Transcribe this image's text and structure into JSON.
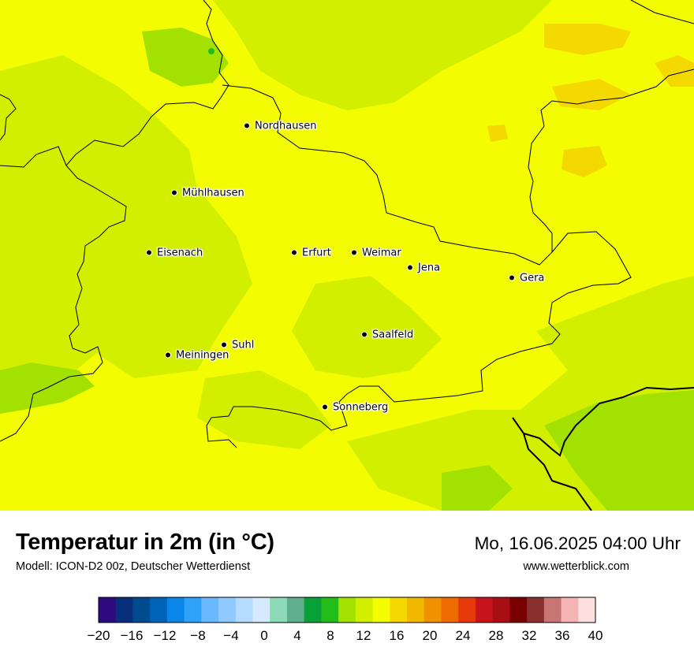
{
  "map": {
    "title": "Temperatur in 2m (in °C)",
    "subtitle": "Modell: ICON-D2 00z, Deutscher Wetterdienst",
    "datetime": "Mo, 16.06.2025 04:00 Uhr",
    "website": "www.wetterblick.com",
    "cities": [
      {
        "name": "Nordhausen"
      },
      {
        "name": "Mühlhausen"
      },
      {
        "name": "Eisenach"
      },
      {
        "name": "Erfurt"
      },
      {
        "name": "Weimar"
      },
      {
        "name": "Jena"
      },
      {
        "name": "Gera"
      },
      {
        "name": "Saalfeld"
      },
      {
        "name": "Suhl"
      },
      {
        "name": "Meiningen"
      },
      {
        "name": "Sonneberg"
      }
    ]
  },
  "legend": {
    "unit": "°C",
    "min": -20,
    "max": 40,
    "step": 2,
    "tick_labels": [
      "−20",
      "−16",
      "−12",
      "−8",
      "−4",
      "0",
      "4",
      "8",
      "12",
      "16",
      "20",
      "24",
      "28",
      "32",
      "36",
      "40"
    ],
    "colors": [
      "#2e0a7e",
      "#0a2f7a",
      "#004b8e",
      "#0064b8",
      "#0a86e8",
      "#2ea1f8",
      "#6ab9ff",
      "#90c9ff",
      "#b5dcff",
      "#d5e9ff",
      "#8ed9b6",
      "#5fae8c",
      "#0aa038",
      "#22bd18",
      "#a2e100",
      "#d2ef00",
      "#f3fc00",
      "#f3d900",
      "#f2b800",
      "#f09100",
      "#ee6b00",
      "#e73a0a",
      "#c8141c",
      "#a80f15",
      "#7a0000",
      "#8a2f2f",
      "#c87575",
      "#f5b3b3",
      "#ffdede"
    ]
  }
}
